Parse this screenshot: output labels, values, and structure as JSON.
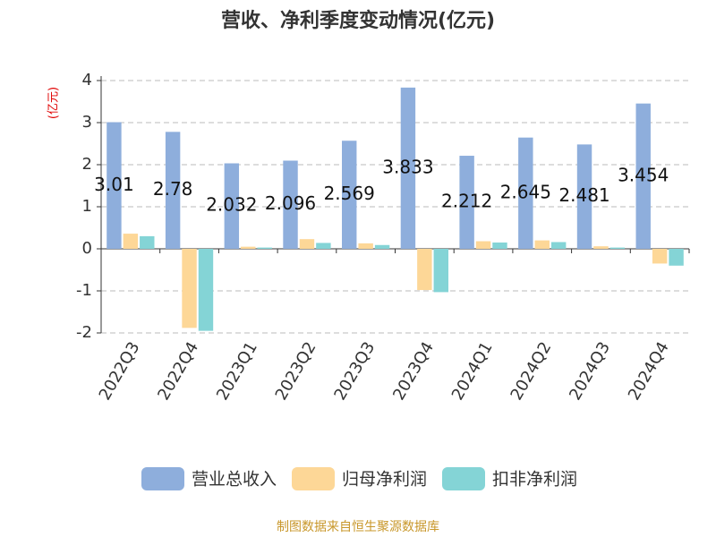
{
  "chart_data": {
    "type": "bar",
    "title": "营收、净利季度变动情况(亿元)",
    "y_label": "(亿元)",
    "categories": [
      "2022Q3",
      "2022Q4",
      "2023Q1",
      "2023Q2",
      "2023Q3",
      "2023Q4",
      "2024Q1",
      "2024Q2",
      "2024Q3",
      "2024Q4"
    ],
    "series": [
      {
        "name": "营业总收入",
        "color": "#8eaedc",
        "labels": true,
        "values": [
          3.01,
          2.78,
          2.032,
          2.096,
          2.569,
          3.833,
          2.212,
          2.645,
          2.481,
          3.454
        ]
      },
      {
        "name": "归母净利润",
        "color": "#fdd797",
        "values": [
          0.36,
          -1.88,
          0.05,
          0.23,
          0.13,
          -0.98,
          0.18,
          0.2,
          0.06,
          -0.35
        ]
      },
      {
        "name": "扣非净利润",
        "color": "#84d4d6",
        "values": [
          0.3,
          -1.95,
          0.03,
          0.14,
          0.09,
          -1.03,
          0.15,
          0.16,
          0.03,
          -0.4
        ]
      }
    ],
    "ylim": [
      -2,
      4
    ],
    "yticks": [
      -2,
      -1,
      0,
      1,
      2,
      3,
      4
    ],
    "grid": true,
    "legend": "bottom",
    "source": "制图数据来自恒生聚源数据库"
  }
}
